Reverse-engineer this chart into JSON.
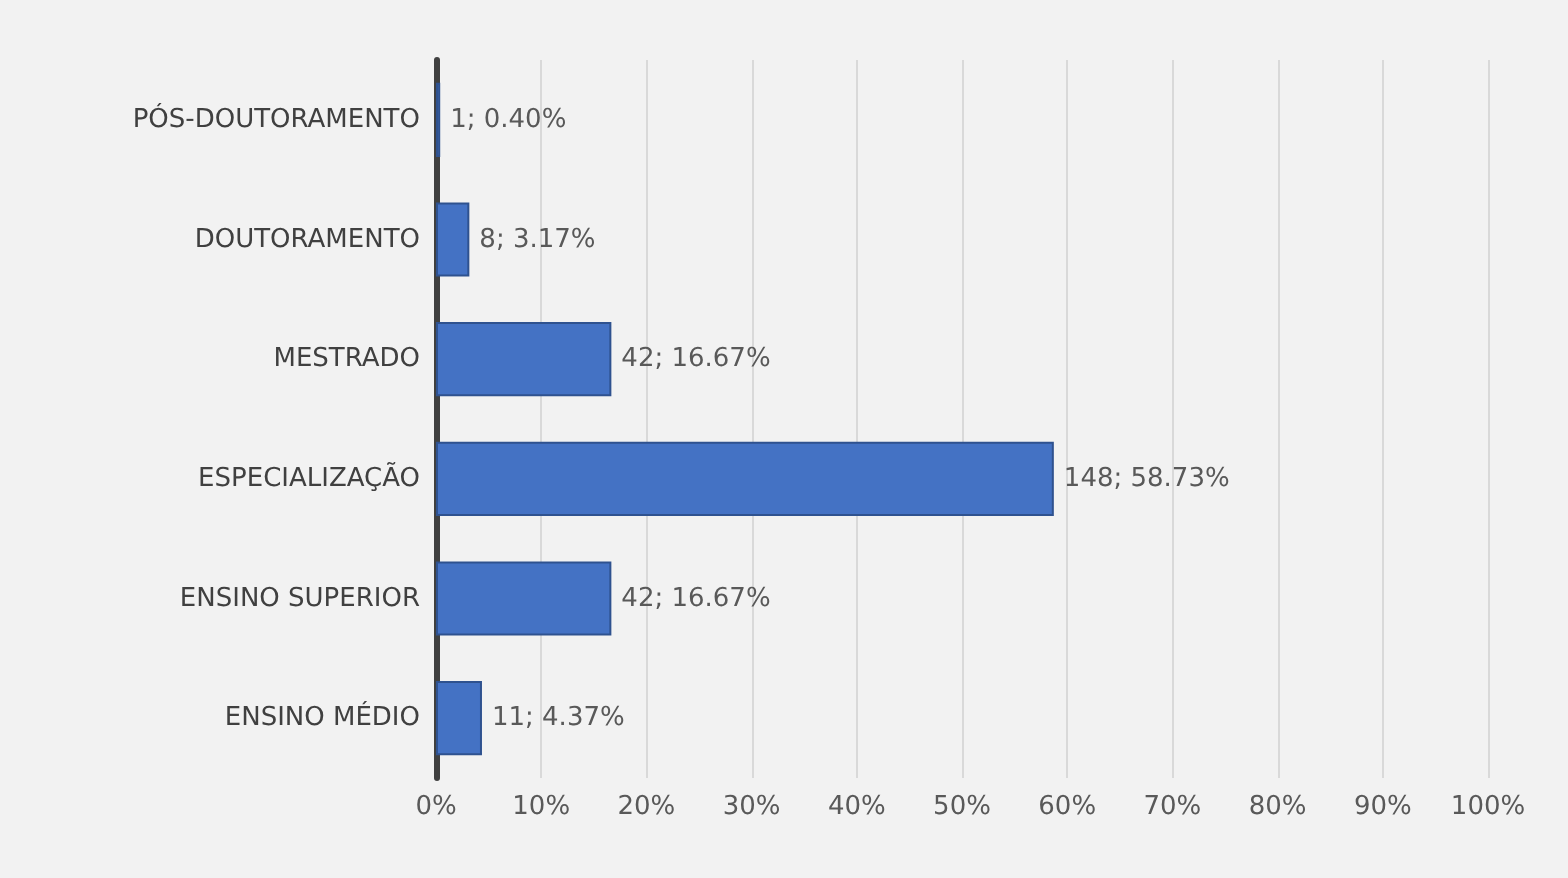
{
  "chart_data": {
    "type": "bar",
    "orientation": "horizontal",
    "categories": [
      "PÓS-DOUTORAMENTO",
      "DOUTORAMENTO",
      "MESTRADO",
      "ESPECIALIZAÇÃO",
      "ENSINO SUPERIOR",
      "ENSINO MÉDIO"
    ],
    "values": [
      0.4,
      3.17,
      16.67,
      58.73,
      16.67,
      4.37
    ],
    "value_labels": [
      "1; 0.40%",
      "8; 3.17%",
      "42; 16.67%",
      "148; 58.73%",
      "42; 16.67%",
      "11; 4.37%"
    ],
    "color": "#4472c4",
    "xlim": [
      0,
      100
    ],
    "xticks": [
      {
        "value": 0,
        "label": "0%"
      },
      {
        "value": 10,
        "label": "10%"
      },
      {
        "value": 20,
        "label": "20%"
      },
      {
        "value": 30,
        "label": "30%"
      },
      {
        "value": 40,
        "label": "40%"
      },
      {
        "value": 50,
        "label": "50%"
      },
      {
        "value": 60,
        "label": "60%"
      },
      {
        "value": 70,
        "label": "70%"
      },
      {
        "value": 80,
        "label": "80%"
      },
      {
        "value": 90,
        "label": "90%"
      },
      {
        "value": 100,
        "label": "100%"
      }
    ],
    "grid": "x"
  }
}
